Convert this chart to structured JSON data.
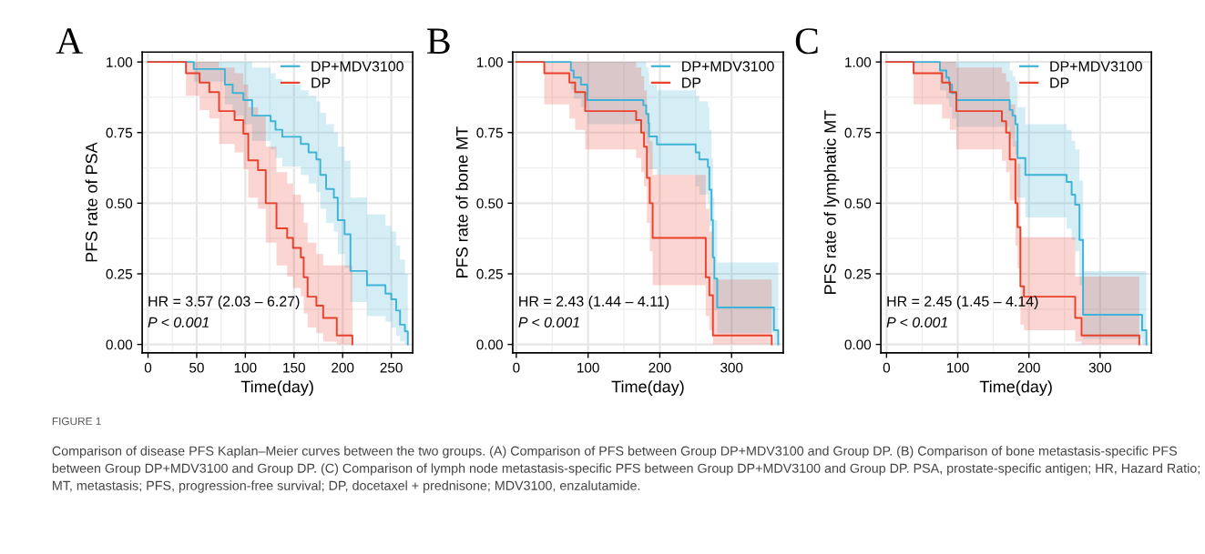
{
  "chart_data": [
    {
      "type": "step",
      "title": "A",
      "xlabel": "Time(day)",
      "ylabel": "PFS rate of PSA",
      "xlim": [
        -6,
        272
      ],
      "xticks": [
        0,
        50,
        100,
        150,
        200,
        250
      ],
      "ylim": [
        -0.03,
        1.035
      ],
      "yticks": [
        {
          "value": 0,
          "label": "0.00"
        },
        {
          "value": 0.25,
          "label": "0.25"
        },
        {
          "value": 0.5,
          "label": "0.50"
        },
        {
          "value": 0.75,
          "label": "0.75"
        },
        {
          "value": 1,
          "label": "1.00"
        }
      ],
      "grid": true,
      "legend": "top right",
      "annotations": [
        "HR = 3.57 (2.03 – 6.27)",
        "P < 0.001",
        "FIGURE 1",
        "Comparison of disease PFS Kaplan–Meier curves between the two groups. (A) Comparison of PFS between Group DP+MDV3100 and Group DP. (B) Comparison of bone metastasis-specific PFS between Group DP+MDV3100 and Group DP. (C) Comparison of lymph node metastasis-specific PFS between Group DP+MDV3100 and Group DP. PSA, prostate-specific antigen; HR, Hazard Ratio; MT, metastasis; PFS, progression-free survival; DP, docetaxel + prednisone; MDV3100, enzalutamide."
      ],
      "series": [
        {
          "name": "DP+MDV3100",
          "color": "#3fb3d5",
          "x": [
            0,
            47,
            79,
            87,
            98,
            107,
            126,
            131,
            138,
            157,
            165,
            173,
            177,
            183,
            191,
            195,
            202,
            208,
            225,
            244,
            250,
            255,
            259,
            264,
            267
          ],
          "values": [
            1,
            0.975,
            0.92,
            0.89,
            0.865,
            0.81,
            0.79,
            0.76,
            0.735,
            0.71,
            0.68,
            0.655,
            0.6,
            0.55,
            0.52,
            0.44,
            0.39,
            0.26,
            0.21,
            0.18,
            0.16,
            0.12,
            0.07,
            0.046,
            0
          ],
          "upper": [
            1,
            1,
            1,
            1,
            1,
            0.98,
            0.96,
            0.94,
            0.92,
            0.9,
            0.88,
            0.86,
            0.82,
            0.78,
            0.75,
            0.7,
            0.65,
            0.52,
            0.46,
            0.42,
            0.4,
            0.35,
            0.3,
            0.25,
            0.25
          ],
          "lower": [
            1,
            0.93,
            0.85,
            0.81,
            0.78,
            0.72,
            0.69,
            0.66,
            0.63,
            0.6,
            0.57,
            0.54,
            0.48,
            0.43,
            0.4,
            0.32,
            0.27,
            0.15,
            0.1,
            0.08,
            0.06,
            0.03,
            0.01,
            0,
            0
          ]
        },
        {
          "name": "DP",
          "color": "#e8412c",
          "x": [
            0,
            39,
            53,
            63,
            73,
            89,
            98,
            103,
            113,
            121,
            132,
            143,
            149,
            157,
            160,
            164,
            173,
            180,
            194,
            210
          ],
          "values": [
            1,
            0.96,
            0.927,
            0.893,
            0.826,
            0.794,
            0.746,
            0.652,
            0.617,
            0.5,
            0.411,
            0.377,
            0.342,
            0.308,
            0.238,
            0.169,
            0.137,
            0.094,
            0.032,
            0
          ],
          "upper": [
            1,
            1,
            1,
            1,
            0.98,
            0.96,
            0.92,
            0.84,
            0.81,
            0.7,
            0.61,
            0.57,
            0.53,
            0.5,
            0.43,
            0.36,
            0.32,
            0.28,
            0.28,
            0.28
          ],
          "lower": [
            1,
            0.88,
            0.83,
            0.8,
            0.71,
            0.68,
            0.62,
            0.52,
            0.48,
            0.36,
            0.28,
            0.24,
            0.2,
            0.17,
            0.11,
            0.06,
            0.04,
            0.01,
            0,
            0
          ]
        }
      ]
    },
    {
      "type": "step",
      "title": "B",
      "xlabel": "Time(day)",
      "ylabel": "PFS rate of bone MT",
      "xlim": [
        -5,
        372
      ],
      "xticks": [
        0,
        100,
        200,
        300
      ],
      "ylim": [
        -0.03,
        1.035
      ],
      "yticks": [
        {
          "value": 0,
          "label": "0.00"
        },
        {
          "value": 0.25,
          "label": "0.25"
        },
        {
          "value": 0.5,
          "label": "0.50"
        },
        {
          "value": 0.75,
          "label": "0.75"
        },
        {
          "value": 1,
          "label": "1.00"
        }
      ],
      "grid": true,
      "legend": "top right",
      "annotations": [
        "HR = 2.43 (1.44 – 4.11)",
        "P < 0.001"
      ],
      "series": [
        {
          "name": "DP+MDV3100",
          "color": "#3fb3d5",
          "x": [
            0,
            76,
            80,
            90,
            99,
            177,
            181,
            184,
            185,
            196,
            250,
            255,
            267,
            269,
            272,
            274,
            276,
            280,
            359,
            365
          ],
          "values": [
            1,
            0.97,
            0.945,
            0.92,
            0.865,
            0.847,
            0.816,
            0.784,
            0.736,
            0.708,
            0.68,
            0.655,
            0.628,
            0.548,
            0.44,
            0.308,
            0.233,
            0.131,
            0.05,
            0
          ],
          "upper": [
            1,
            1,
            1,
            1,
            1,
            1,
            0.98,
            0.96,
            0.92,
            0.9,
            0.88,
            0.86,
            0.84,
            0.76,
            0.66,
            0.52,
            0.44,
            0.29,
            0.29,
            0.29
          ],
          "lower": [
            1,
            0.9,
            0.87,
            0.84,
            0.78,
            0.75,
            0.71,
            0.68,
            0.62,
            0.6,
            0.56,
            0.53,
            0.5,
            0.42,
            0.31,
            0.18,
            0.12,
            0.04,
            0,
            0
          ]
        },
        {
          "name": "DP",
          "color": "#e8412c",
          "x": [
            0,
            39,
            74,
            82,
            96,
            167,
            174,
            178,
            182,
            186,
            190,
            264,
            269,
            274,
            356
          ],
          "values": [
            1,
            0.96,
            0.927,
            0.893,
            0.826,
            0.794,
            0.75,
            0.7,
            0.59,
            0.5,
            0.377,
            0.238,
            0.174,
            0.032,
            0
          ],
          "upper": [
            1,
            1,
            1,
            1,
            1,
            0.98,
            0.95,
            0.9,
            0.82,
            0.72,
            0.6,
            0.48,
            0.4,
            0.23,
            0.23
          ],
          "lower": [
            1,
            0.85,
            0.8,
            0.76,
            0.69,
            0.66,
            0.61,
            0.56,
            0.43,
            0.33,
            0.21,
            0.1,
            0.05,
            0,
            0
          ]
        }
      ]
    },
    {
      "type": "step",
      "title": "C",
      "xlabel": "Time(day)",
      "ylabel": "PFS rate of lymphatic MT",
      "xlim": [
        -8,
        372
      ],
      "xticks": [
        0,
        100,
        200,
        300
      ],
      "ylim": [
        -0.03,
        1.035
      ],
      "yticks": [
        {
          "value": 0,
          "label": "0.00"
        },
        {
          "value": 0.25,
          "label": "0.25"
        },
        {
          "value": 0.5,
          "label": "0.50"
        },
        {
          "value": 0.75,
          "label": "0.75"
        },
        {
          "value": 1,
          "label": "1.00"
        }
      ],
      "grid": true,
      "legend": "top right",
      "annotations": [
        "HR = 2.45 (1.45 – 4.14)",
        "P < 0.001"
      ],
      "series": [
        {
          "name": "DP+MDV3100",
          "color": "#3fb3d5",
          "x": [
            0,
            75,
            84,
            88,
            92,
            98,
            173,
            177,
            181,
            184,
            195,
            253,
            260,
            265,
            271,
            276,
            359,
            365
          ],
          "values": [
            1,
            0.97,
            0.945,
            0.92,
            0.89,
            0.865,
            0.83,
            0.81,
            0.78,
            0.66,
            0.6,
            0.575,
            0.53,
            0.495,
            0.37,
            0.105,
            0.05,
            0
          ],
          "upper": [
            1,
            1,
            1,
            1,
            1,
            1,
            0.97,
            0.95,
            0.93,
            0.84,
            0.78,
            0.76,
            0.72,
            0.69,
            0.58,
            0.26,
            0.26,
            0.26
          ],
          "lower": [
            1,
            0.9,
            0.87,
            0.84,
            0.8,
            0.77,
            0.73,
            0.7,
            0.67,
            0.52,
            0.45,
            0.41,
            0.37,
            0.33,
            0.21,
            0.02,
            0,
            0
          ]
        },
        {
          "name": "DP",
          "color": "#e8412c",
          "x": [
            0,
            38,
            78,
            89,
            98,
            162,
            168,
            173,
            181,
            184,
            188,
            193,
            265,
            274,
            355
          ],
          "values": [
            1,
            0.96,
            0.927,
            0.893,
            0.826,
            0.79,
            0.75,
            0.655,
            0.5,
            0.415,
            0.206,
            0.169,
            0.094,
            0.032,
            0
          ],
          "upper": [
            1,
            1,
            1,
            1,
            0.98,
            0.96,
            0.93,
            0.85,
            0.72,
            0.64,
            0.38,
            0.38,
            0.24,
            0.24,
            0.24
          ],
          "lower": [
            1,
            0.85,
            0.8,
            0.76,
            0.69,
            0.65,
            0.61,
            0.51,
            0.35,
            0.27,
            0.07,
            0.05,
            0.01,
            0,
            0
          ]
        }
      ]
    }
  ]
}
